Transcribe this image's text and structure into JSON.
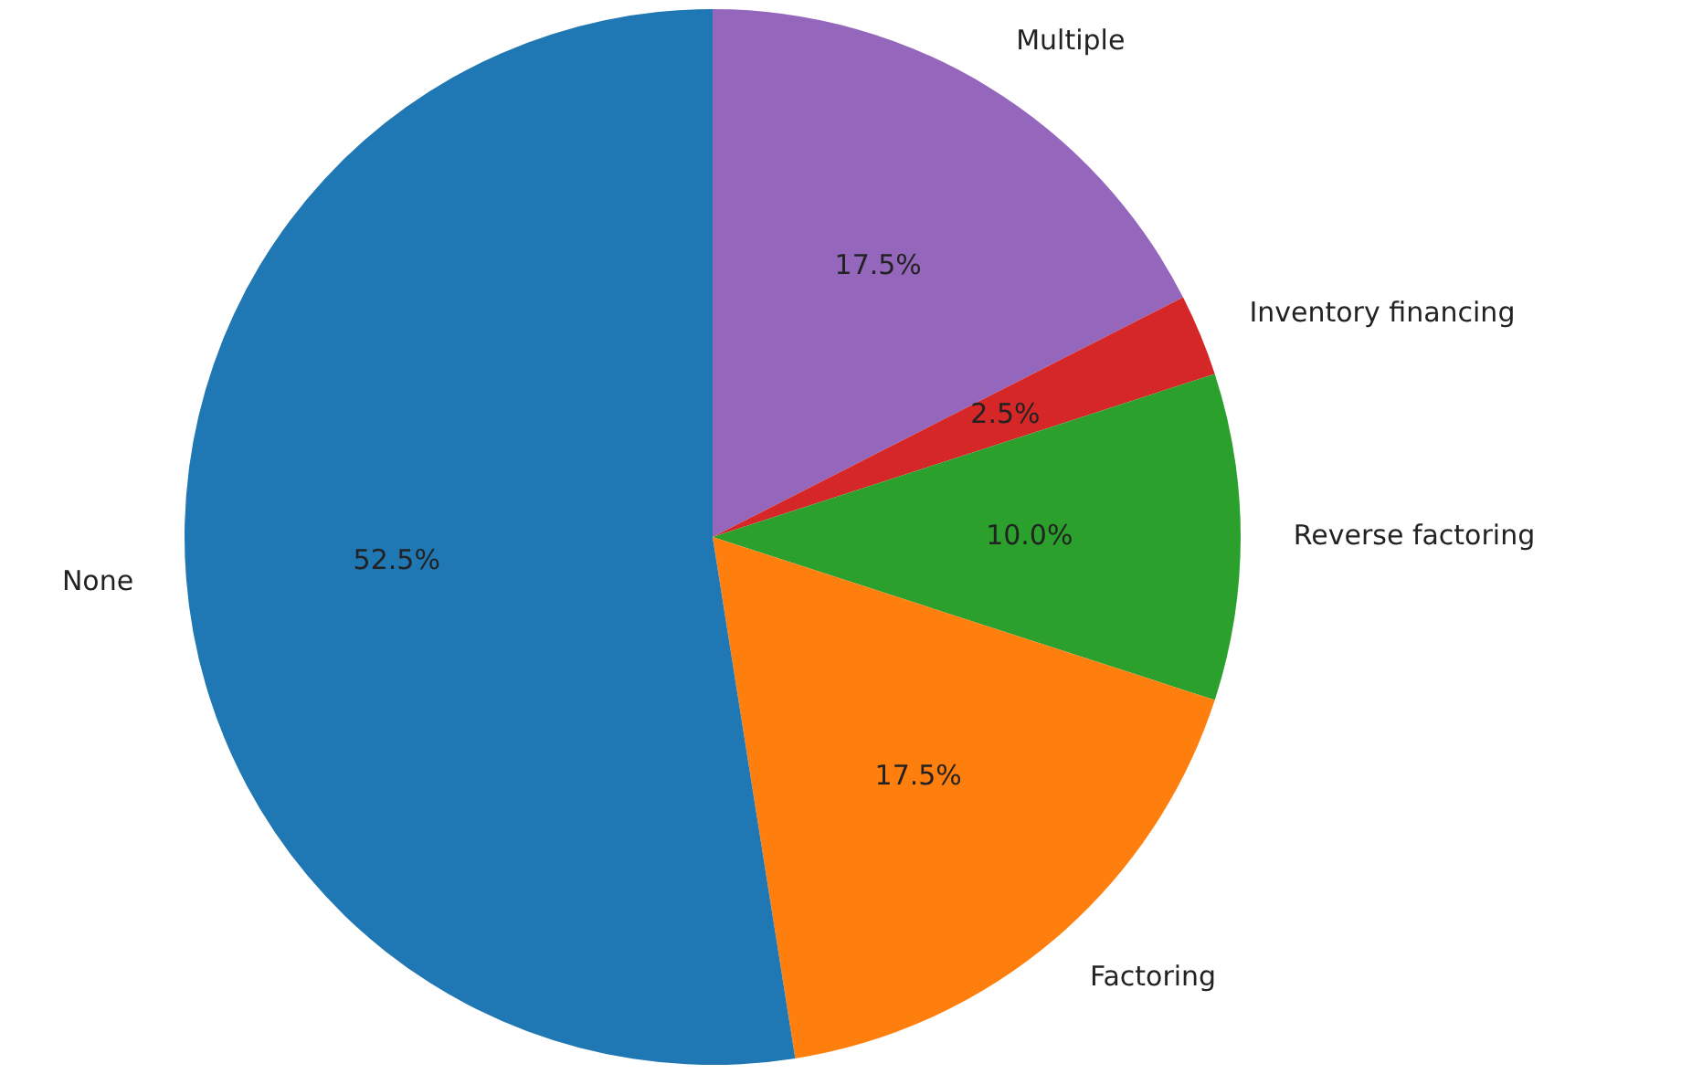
{
  "chart_data": {
    "type": "pie",
    "categories": [
      "Multiple",
      "Inventory financing",
      "Reverse factoring",
      "Factoring",
      "None"
    ],
    "values": [
      17.5,
      2.5,
      10.0,
      17.5,
      52.5
    ],
    "colors": [
      "#9467bd",
      "#d62728",
      "#2ca02c",
      "#ff7f0e",
      "#1f77b4"
    ],
    "value_labels": [
      "17.5%",
      "2.5%",
      "10.0%",
      "17.5%",
      "52.5%"
    ],
    "legend": false
  }
}
